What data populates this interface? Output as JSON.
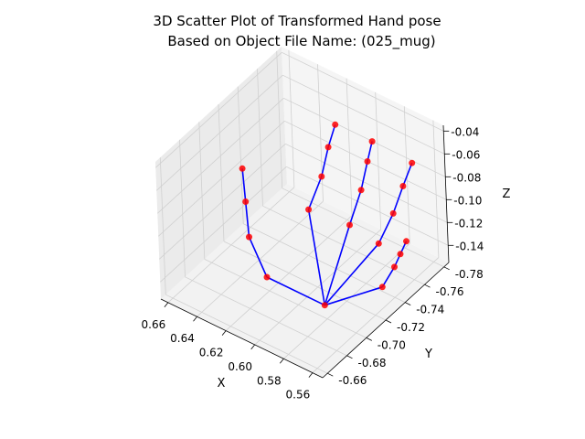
{
  "chart_data": {
    "type": "scatter3d",
    "title_line1": "3D Scatter Plot of Transformed Hand pose",
    "title_line2": "Based on Object File Name: (025_mug)",
    "xlabel": "X",
    "ylabel": "Y",
    "zlabel": "Z",
    "x_ticks": [
      "0.66",
      "0.64",
      "0.62",
      "0.60",
      "0.58",
      "0.56"
    ],
    "y_ticks": [
      "-0.66",
      "-0.68",
      "-0.70",
      "-0.72",
      "-0.74",
      "-0.76",
      "-0.78"
    ],
    "z_ticks": [
      "-0.04",
      "-0.06",
      "-0.08",
      "-0.10",
      "-0.12",
      "-0.14"
    ],
    "point_color": "#ff0000",
    "line_color": "#0000ff",
    "points": [
      {
        "x": 0.585,
        "y": -0.705,
        "z": -0.15
      },
      {
        "x": 0.625,
        "y": -0.705,
        "z": -0.15
      },
      {
        "x": 0.64,
        "y": -0.71,
        "z": -0.128
      },
      {
        "x": 0.645,
        "y": -0.715,
        "z": -0.104
      },
      {
        "x": 0.65,
        "y": -0.72,
        "z": -0.082
      },
      {
        "x": 0.615,
        "y": -0.735,
        "z": -0.108
      },
      {
        "x": 0.612,
        "y": -0.745,
        "z": -0.085
      },
      {
        "x": 0.61,
        "y": -0.75,
        "z": -0.062
      },
      {
        "x": 0.608,
        "y": -0.755,
        "z": -0.045
      },
      {
        "x": 0.59,
        "y": -0.74,
        "z": -0.11
      },
      {
        "x": 0.588,
        "y": -0.75,
        "z": -0.086
      },
      {
        "x": 0.587,
        "y": -0.756,
        "z": -0.065
      },
      {
        "x": 0.586,
        "y": -0.76,
        "z": -0.05
      },
      {
        "x": 0.57,
        "y": -0.74,
        "z": -0.114
      },
      {
        "x": 0.566,
        "y": -0.75,
        "z": -0.093
      },
      {
        "x": 0.564,
        "y": -0.758,
        "z": -0.074
      },
      {
        "x": 0.562,
        "y": -0.765,
        "z": -0.058
      },
      {
        "x": 0.558,
        "y": -0.725,
        "z": -0.133
      },
      {
        "x": 0.556,
        "y": -0.735,
        "z": -0.122
      },
      {
        "x": 0.555,
        "y": -0.74,
        "z": -0.114
      },
      {
        "x": 0.554,
        "y": -0.745,
        "z": -0.106
      }
    ],
    "connections": [
      [
        0,
        1
      ],
      [
        1,
        2
      ],
      [
        2,
        3
      ],
      [
        3,
        4
      ],
      [
        0,
        5
      ],
      [
        5,
        6
      ],
      [
        6,
        7
      ],
      [
        7,
        8
      ],
      [
        0,
        9
      ],
      [
        9,
        10
      ],
      [
        10,
        11
      ],
      [
        11,
        12
      ],
      [
        0,
        13
      ],
      [
        13,
        14
      ],
      [
        14,
        15
      ],
      [
        15,
        16
      ],
      [
        0,
        17
      ],
      [
        17,
        18
      ],
      [
        18,
        19
      ],
      [
        19,
        20
      ]
    ]
  }
}
